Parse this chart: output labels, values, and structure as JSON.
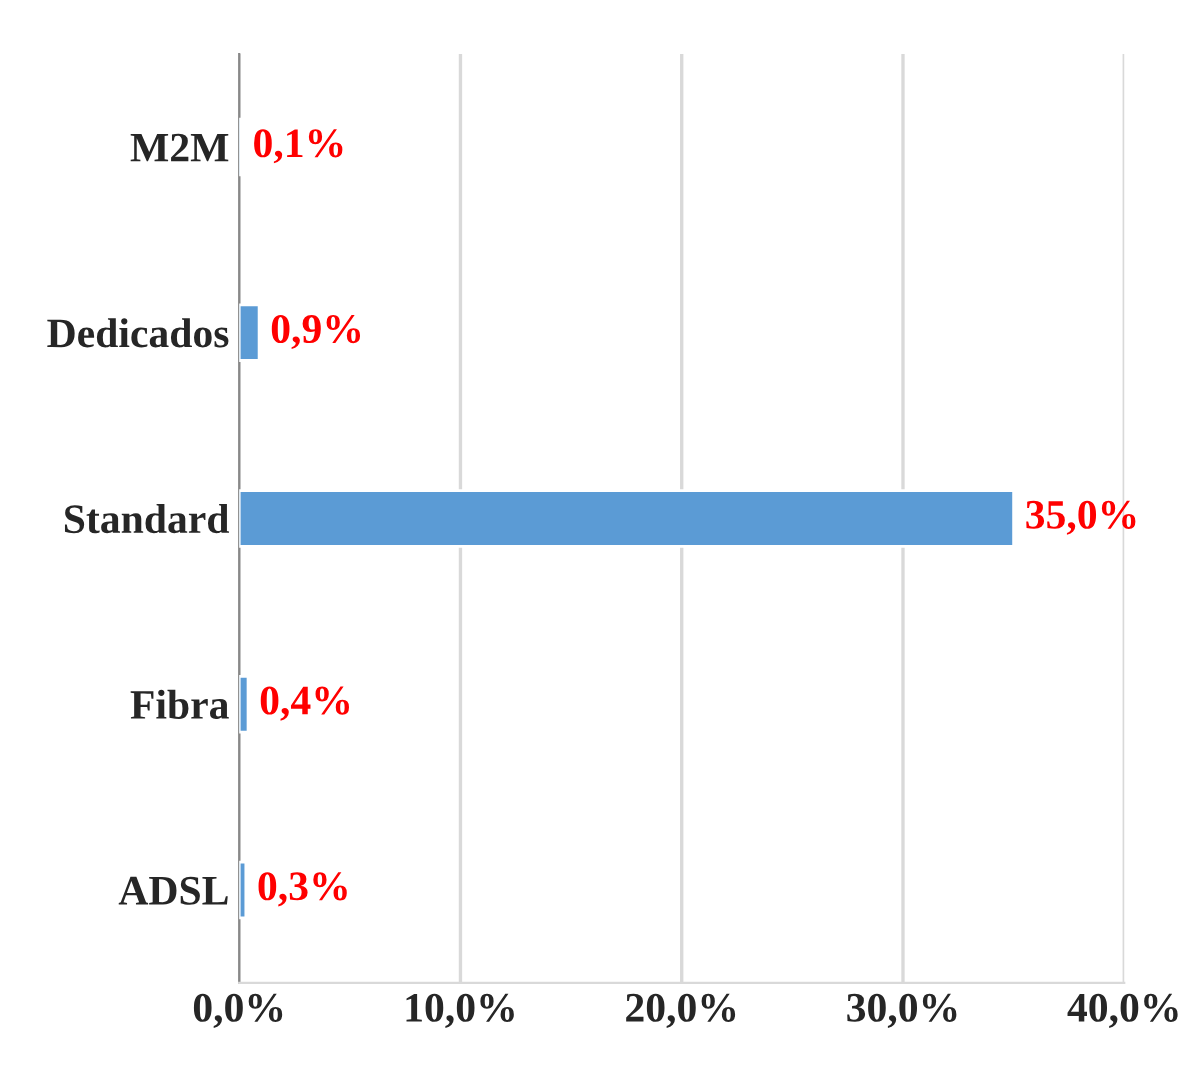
{
  "chart_data": {
    "type": "bar",
    "orientation": "horizontal",
    "categories": [
      "M2M",
      "Dedicados",
      "Standard",
      "Fibra",
      "ADSL"
    ],
    "values": [
      0.1,
      0.9,
      35.0,
      0.4,
      0.3
    ],
    "value_labels": [
      "0,1%",
      "0,9%",
      "35,0%",
      "0,4%",
      "0,3%"
    ],
    "color": "#5b9bd5",
    "xlim": [
      0,
      40
    ],
    "xticks": [
      {
        "value": 0,
        "label": "0,0%"
      },
      {
        "value": 10,
        "label": "10,0%"
      },
      {
        "value": 20,
        "label": "20,0%"
      },
      {
        "value": 30,
        "label": "30,0%"
      },
      {
        "value": 40,
        "label": "40,0%"
      }
    ],
    "grid": "x"
  }
}
